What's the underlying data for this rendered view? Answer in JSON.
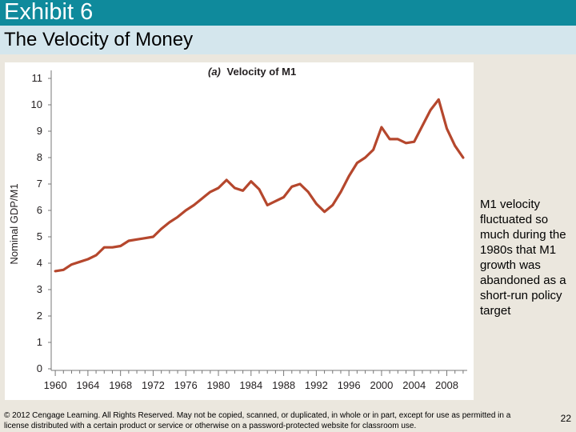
{
  "slide": {
    "title": "Exhibit 6",
    "subtitle": "The Velocity of Money",
    "annotation": "M1 velocity fluctuated so much during the 1980s that M1 growth was abandoned as a short-run policy target",
    "copyright": "© 2012 Cengage Learning. All Rights Reserved. May not be copied, scanned, or duplicated, in whole or in part, except for use as permitted in a license distributed with a certain product or service or otherwise on a password-protected website for classroom use.",
    "page_number": "22"
  },
  "colors": {
    "title_bar": "#0f8a9c",
    "subtitle_bar": "#d4e6ed",
    "series_line": "#b5472d",
    "background": "#ebe7de"
  },
  "chart_data": {
    "type": "line",
    "title": "(a) Velocity of M1",
    "title_prefix": "(a)",
    "title_main": "Velocity of M1",
    "xlabel": "",
    "ylabel": "Nominal GDP/M1",
    "xlim": [
      1959.5,
      2010.5
    ],
    "ylim": [
      0,
      11
    ],
    "grid": false,
    "x_ticks": [
      1960,
      1964,
      1968,
      1972,
      1976,
      1980,
      1984,
      1988,
      1992,
      1996,
      2000,
      2004,
      2008
    ],
    "y_ticks": [
      0,
      1,
      2,
      3,
      4,
      5,
      6,
      7,
      8,
      9,
      10,
      11
    ],
    "series": [
      {
        "x": [
          1960,
          1961,
          1962,
          1963,
          1964,
          1965,
          1966,
          1967,
          1968,
          1969,
          1970,
          1971,
          1972,
          1973,
          1974,
          1975,
          1976,
          1977,
          1978,
          1979,
          1980,
          1981,
          1982,
          1983,
          1984,
          1985,
          1986,
          1987,
          1988,
          1989,
          1990,
          1991,
          1992,
          1993,
          1994,
          1995,
          1996,
          1997,
          1998,
          1999,
          2000,
          2001,
          2002,
          2003,
          2004,
          2005,
          2006,
          2007,
          2008,
          2009,
          2010
        ],
        "y": [
          3.7,
          3.75,
          3.95,
          4.05,
          4.15,
          4.3,
          4.6,
          4.6,
          4.65,
          4.85,
          4.9,
          4.95,
          5.0,
          5.3,
          5.55,
          5.75,
          6.0,
          6.2,
          6.45,
          6.7,
          6.85,
          7.15,
          6.85,
          6.75,
          7.1,
          6.8,
          6.2,
          6.35,
          6.5,
          6.9,
          7.0,
          6.7,
          6.25,
          5.95,
          6.2,
          6.7,
          7.3,
          7.8,
          8.0,
          8.3,
          9.15,
          8.7,
          8.7,
          8.55,
          8.6,
          9.2,
          9.8,
          10.2,
          9.1,
          8.45,
          8.0
        ]
      }
    ]
  }
}
